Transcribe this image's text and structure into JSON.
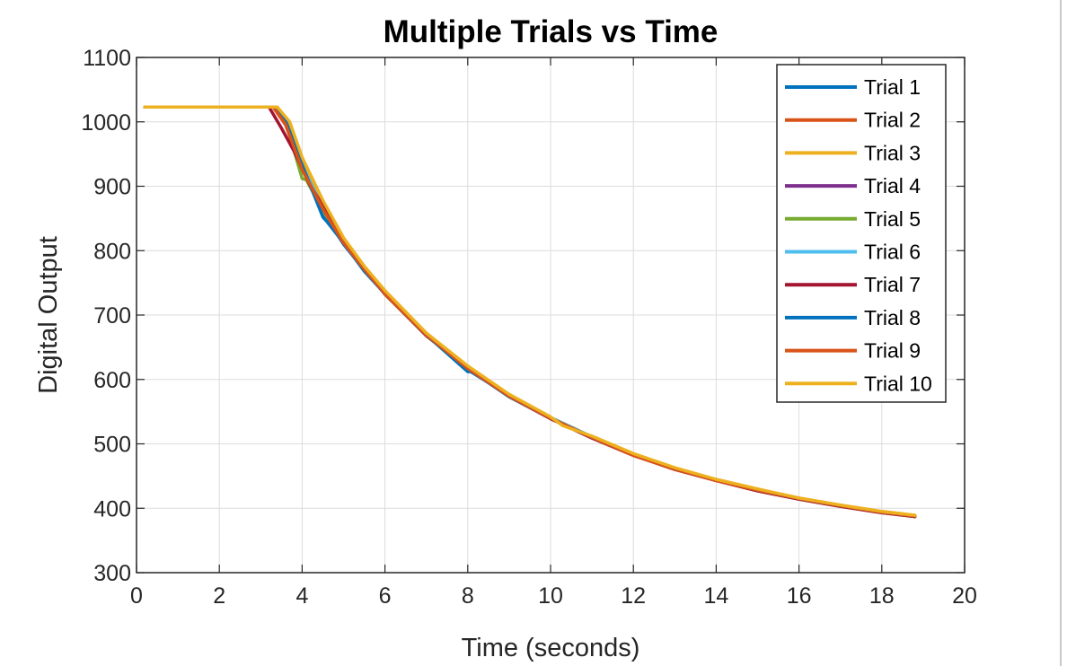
{
  "chart_data": {
    "type": "line",
    "title": "Multiple Trials vs Time",
    "xlabel": "Time (seconds)",
    "ylabel": "Digital Output",
    "xlim": [
      0,
      20
    ],
    "ylim": [
      300,
      1100
    ],
    "xticks": [
      "0",
      "2",
      "4",
      "6",
      "8",
      "10",
      "12",
      "14",
      "16",
      "18",
      "20"
    ],
    "yticks": [
      "300",
      "400",
      "500",
      "600",
      "700",
      "800",
      "900",
      "1000",
      "1100"
    ],
    "grid": true,
    "legend_position": "top-right",
    "series": [
      {
        "name": "Trial 1",
        "color": "#0072BD",
        "x": [
          0.2,
          3.3,
          3.6,
          4.0,
          4.5,
          5.0,
          5.5,
          6.0,
          7.0,
          8.0,
          9.0,
          10.0,
          11.0,
          12.0,
          13.0,
          14.0,
          15.0,
          16.0,
          17.0,
          18.0,
          18.8
        ],
        "y": [
          1023,
          1023,
          1000,
          930,
          860,
          810,
          770,
          735,
          670,
          615,
          575,
          540,
          510,
          483,
          462,
          444,
          428,
          415,
          404,
          394,
          388
        ]
      },
      {
        "name": "Trial 2",
        "color": "#D95319",
        "x": [
          0.2,
          3.3,
          3.6,
          4.0,
          4.5,
          5.0,
          5.5,
          6.0,
          7.0,
          8.0,
          9.0,
          10.0,
          11.0,
          12.0,
          13.0,
          14.0,
          15.0,
          16.0,
          17.0,
          18.0,
          18.8
        ],
        "y": [
          1023,
          1023,
          995,
          925,
          870,
          815,
          772,
          732,
          668,
          618,
          573,
          539,
          509,
          482,
          460,
          443,
          427,
          414,
          403,
          393,
          387
        ]
      },
      {
        "name": "Trial 3",
        "color": "#EDB120",
        "x": [
          0.2,
          3.3,
          3.6,
          4.0,
          4.5,
          5.0,
          5.5,
          6.0,
          7.0,
          8.0,
          9.0,
          10.0,
          11.0,
          12.0,
          13.0,
          14.0,
          15.0,
          16.0,
          17.0,
          18.0,
          18.8
        ],
        "y": [
          1023,
          1023,
          1005,
          935,
          875,
          818,
          775,
          737,
          672,
          620,
          576,
          541,
          511,
          484,
          462,
          444,
          429,
          416,
          405,
          395,
          389
        ]
      },
      {
        "name": "Trial 4",
        "color": "#7E2F8E",
        "x": [
          0.2,
          3.3,
          3.6,
          4.0,
          4.5,
          5.0,
          5.5,
          6.0,
          7.0,
          8.0,
          9.0,
          10.0,
          11.0,
          12.0,
          13.0,
          14.0,
          15.0,
          16.0,
          17.0,
          18.0,
          18.8
        ],
        "y": [
          1023,
          1023,
          998,
          928,
          866,
          812,
          771,
          734,
          669,
          617,
          574,
          540,
          510,
          483,
          461,
          443,
          428,
          415,
          404,
          394,
          388
        ]
      },
      {
        "name": "Trial 5",
        "color": "#77AC30",
        "x": [
          0.2,
          3.3,
          3.6,
          4.0,
          4.1,
          4.5,
          5.0,
          5.5,
          6.0,
          7.0,
          8.0,
          9.0,
          10.0,
          11.0,
          12.0,
          13.0,
          14.0,
          15.0,
          16.0,
          17.0,
          18.0,
          18.8
        ],
        "y": [
          1023,
          1023,
          1000,
          912,
          910,
          862,
          813,
          770,
          733,
          668,
          617,
          574,
          540,
          510,
          484,
          462,
          444,
          428,
          415,
          404,
          394,
          388
        ]
      },
      {
        "name": "Trial 6",
        "color": "#4DBEEE",
        "x": [
          0.2,
          3.3,
          3.6,
          4.0,
          4.5,
          5.0,
          5.5,
          6.0,
          7.0,
          8.0,
          9.0,
          10.0,
          11.0,
          12.0,
          13.0,
          14.0,
          15.0,
          16.0,
          17.0,
          18.0,
          18.8
        ],
        "y": [
          1023,
          1023,
          1001,
          932,
          867,
          814,
          772,
          735,
          671,
          619,
          575,
          541,
          511,
          484,
          462,
          444,
          429,
          415,
          404,
          394,
          388
        ]
      },
      {
        "name": "Trial 7",
        "color": "#A2142F",
        "x": [
          0.2,
          3.2,
          3.5,
          3.8,
          4.2,
          4.5,
          5.0,
          5.5,
          6.0,
          7.0,
          8.0,
          9.0,
          10.0,
          11.0,
          12.0,
          13.0,
          14.0,
          15.0,
          16.0,
          17.0,
          18.0,
          18.8
        ],
        "y": [
          1023,
          1023,
          990,
          955,
          900,
          870,
          815,
          770,
          733,
          668,
          617,
          574,
          539,
          509,
          482,
          461,
          443,
          427,
          414,
          403,
          393,
          387
        ]
      },
      {
        "name": "Trial 8",
        "color": "#0072BD",
        "x": [
          0.2,
          3.3,
          3.6,
          4.0,
          4.5,
          4.6,
          5.0,
          5.5,
          6.0,
          7.0,
          8.0,
          8.1,
          9.0,
          10.0,
          11.0,
          12.0,
          13.0,
          14.0,
          15.0,
          16.0,
          17.0,
          18.0,
          18.8
        ],
        "y": [
          1023,
          1023,
          1002,
          933,
          852,
          845,
          812,
          768,
          733,
          669,
          612,
          612,
          573,
          540,
          510,
          483,
          461,
          444,
          428,
          415,
          404,
          394,
          388
        ]
      },
      {
        "name": "Trial 9",
        "color": "#D95319",
        "x": [
          0.2,
          3.3,
          3.6,
          4.0,
          4.5,
          5.0,
          5.5,
          6.0,
          7.0,
          8.0,
          9.0,
          10.0,
          11.0,
          12.0,
          13.0,
          14.0,
          15.0,
          16.0,
          17.0,
          18.0,
          18.8
        ],
        "y": [
          1023,
          1023,
          996,
          926,
          865,
          812,
          771,
          733,
          669,
          617,
          574,
          540,
          510,
          482,
          461,
          443,
          428,
          415,
          404,
          394,
          388
        ]
      },
      {
        "name": "Trial 10",
        "color": "#EDB120",
        "x": [
          0.2,
          3.4,
          3.7,
          4.0,
          4.5,
          5.0,
          5.5,
          6.0,
          7.0,
          8.0,
          9.0,
          10.0,
          10.3,
          11.0,
          12.0,
          13.0,
          14.0,
          15.0,
          16.0,
          17.0,
          18.0,
          18.8
        ],
        "y": [
          1023,
          1023,
          1000,
          945,
          878,
          820,
          776,
          738,
          672,
          621,
          577,
          542,
          528,
          512,
          485,
          463,
          445,
          430,
          416,
          405,
          395,
          389
        ]
      }
    ]
  }
}
